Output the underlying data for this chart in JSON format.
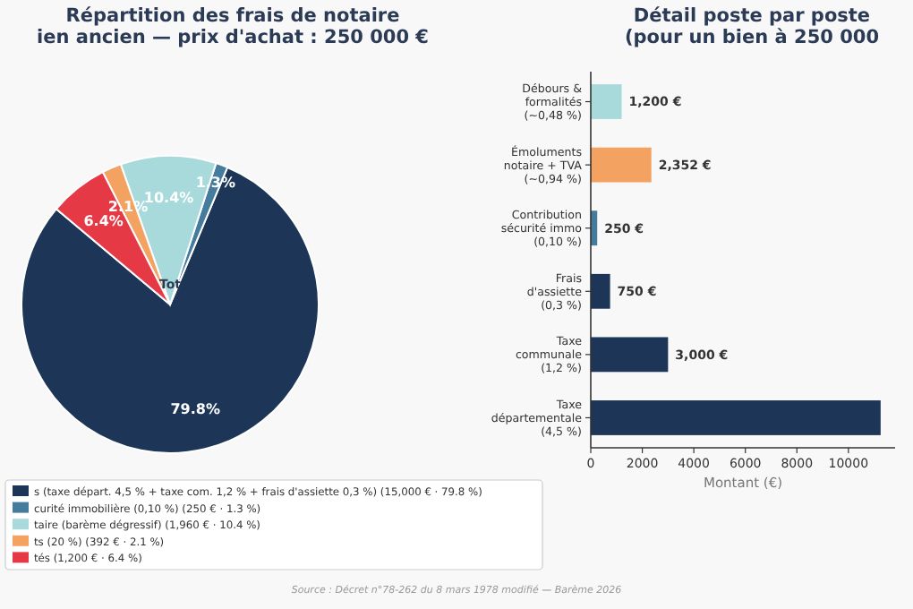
{
  "chart_data": [
    {
      "type": "pie",
      "title": "Répartition des frais de notaire",
      "subtitle": "ien ancien — prix d'achat : 250 000 €",
      "categories": [
        "s (taxe départ. 4,5 % + taxe com. 1,2 % + frais d'assiette 0,3 %)  (15,000 € · 79.8 %)",
        "curité immobilière (0,10 %)  (250 € · 1.3 %)",
        "taire (barème dégressif)  (1,960 € · 10.4 %)",
        "ts (20 %)  (392 € · 2.1 %)",
        "tés  (1,200 € · 6.4 %)"
      ],
      "values": [
        79.8,
        1.3,
        10.4,
        2.1,
        6.4
      ],
      "colors": [
        "#1d3557",
        "#457b9d",
        "#a8dadc",
        "#f4a261",
        "#e63946"
      ],
      "value_labels": [
        "79.8%",
        "1.3%",
        "10.4%",
        "2.1%",
        "6.4%"
      ],
      "annotations": [
        "Tot",
        "Source : Décret n°78-262 du 8 mars 1978 modifié — Barème 2026"
      ],
      "legend": "bottom"
    },
    {
      "type": "bar",
      "orientation": "horizontal",
      "title": "Détail poste par poste",
      "subtitle": "(pour un bien à 250 000",
      "categories": [
        "Débours &\nformalités\n(~0,48 %)",
        "Émoluments\nnotaire + TVA\n(~0,94 %)",
        "Contribution\nsécurité immo\n(0,10 %)",
        "Frais\nd'assiette\n(0,3 %)",
        "Taxe\ncommunale\n(1,2 %)",
        "Taxe\ndépartementale\n(4,5 %)"
      ],
      "values": [
        1200,
        2352,
        250,
        750,
        3000,
        11250
      ],
      "colors": [
        "#a8dadc",
        "#f4a261",
        "#457b9d",
        "#1d3557",
        "#1d3557",
        "#1d3557"
      ],
      "value_labels": [
        "1,200 €",
        "2,352 €",
        "250 €",
        "750 €",
        "3,000 €",
        null
      ],
      "xlabel": "Montant (€)",
      "xlim": [
        0,
        11812
      ],
      "xticks": [
        0,
        2000,
        4000,
        6000,
        8000,
        10000
      ],
      "grid": false
    }
  ]
}
